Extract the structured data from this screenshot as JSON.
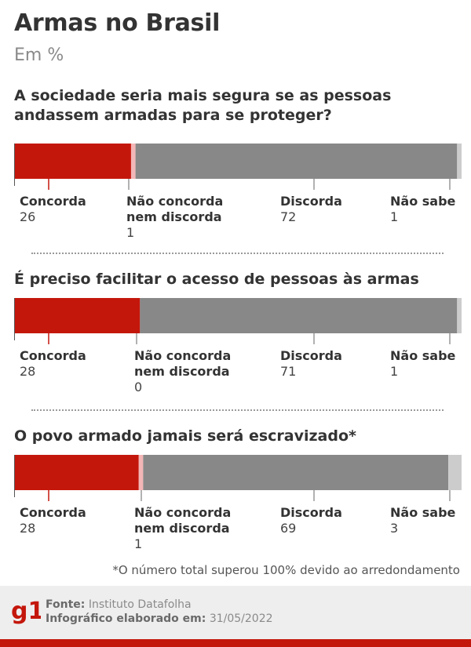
{
  "header": {
    "title": "Armas no Brasil",
    "subtitle": "Em %"
  },
  "chart_data": [
    {
      "type": "bar",
      "title": "A sociedade seria mais segura se as pessoas andassem armadas para se proteger?",
      "categories": [
        "Concorda",
        "Não concorda nem discorda",
        "Discorda",
        "Não sabe"
      ],
      "values": [
        26,
        1,
        72,
        1
      ],
      "colors": [
        "#c4170c",
        "#f4b6b6",
        "#888888",
        "#cccccc"
      ]
    },
    {
      "type": "bar",
      "title": "É preciso facilitar o acesso de pessoas às armas",
      "categories": [
        "Concorda",
        "Não concorda nem discorda",
        "Discorda",
        "Não sabe"
      ],
      "values": [
        28,
        0,
        71,
        1
      ],
      "colors": [
        "#c4170c",
        "#f4b6b6",
        "#888888",
        "#cccccc"
      ]
    },
    {
      "type": "bar",
      "title": "O povo armado jamais será escravizado*",
      "categories": [
        "Concorda",
        "Não concorda nem discorda",
        "Discorda",
        "Não sabe"
      ],
      "values": [
        28,
        1,
        69,
        3
      ],
      "colors": [
        "#c4170c",
        "#f4b6b6",
        "#888888",
        "#cccccc"
      ]
    }
  ],
  "labels": {
    "concorda": "Concorda",
    "neutral_line1": "Não concorda",
    "neutral_line2": "nem discorda",
    "discorda": "Discorda",
    "nao_sabe": "Não sabe"
  },
  "footnote": "*O número total superou 100% devido ao arredondamento",
  "footer": {
    "logo_text": "g1",
    "source_label": "Fonte:",
    "source_value": "Instituto Datafolha",
    "date_label": "Infográfico elaborado em:",
    "date_value": "31/05/2022",
    "brand_color": "#c4170c"
  }
}
